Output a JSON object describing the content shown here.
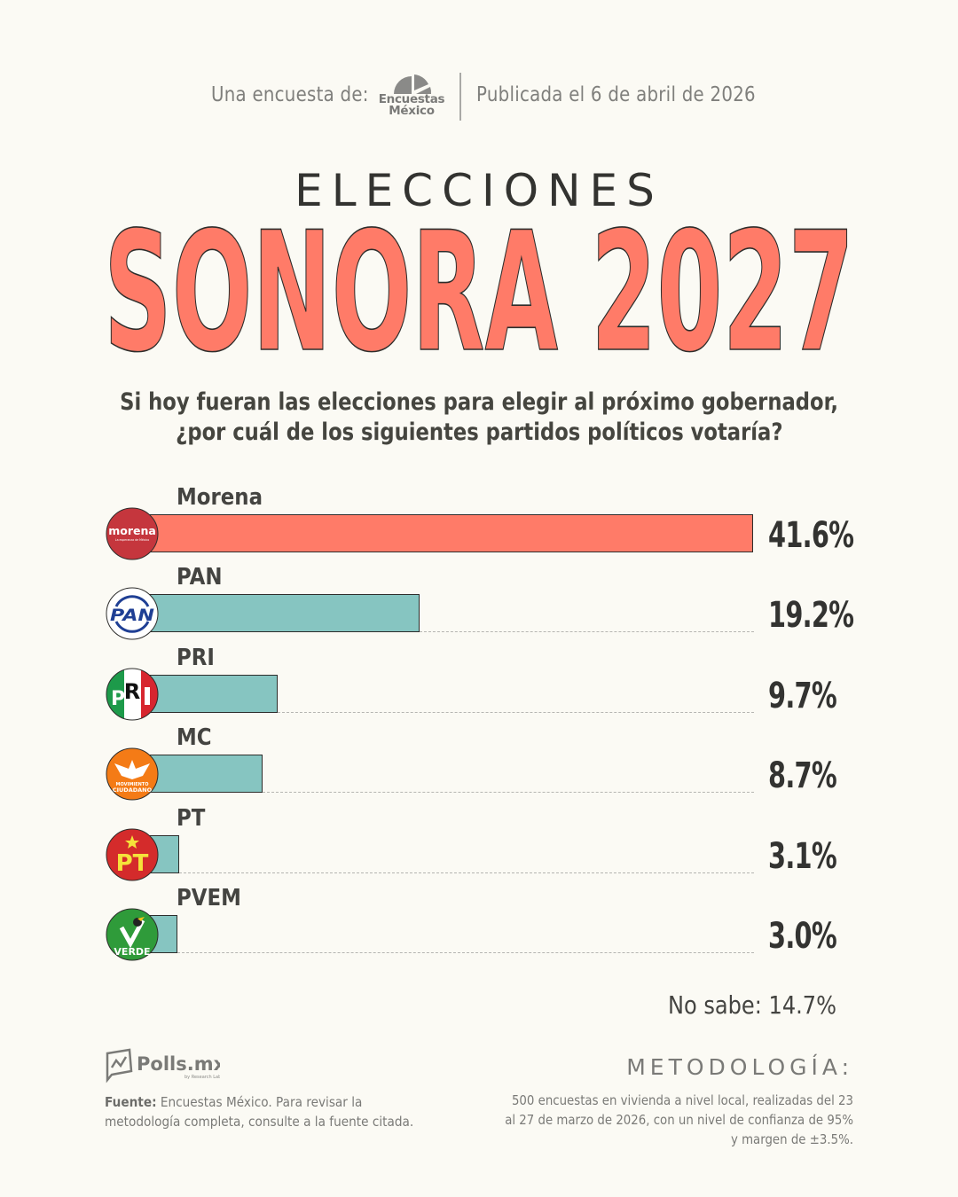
{
  "header": {
    "survey_by_label": "Una encuesta de:",
    "pollster_logo_line1": "Encuestas",
    "pollster_logo_line2": "México",
    "published_label": "Publicada el 6 de abril de 2026"
  },
  "title": {
    "kicker": "ELECCIONES",
    "main": "SONORA 2027",
    "main_color": "#ff7b68"
  },
  "question": {
    "line1": "Si hoy fueran las elecciones para elegir al próximo gobernador,",
    "line2": "¿por cuál de los siguientes partidos políticos votaría?"
  },
  "chart_data": {
    "type": "bar",
    "orientation": "horizontal",
    "title": "Si hoy fueran las elecciones para elegir al próximo gobernador, ¿por cuál de los siguientes partidos políticos votaría?",
    "xlabel": "",
    "ylabel": "",
    "unit": "%",
    "xlim": [
      0,
      41.6
    ],
    "grid": false,
    "categories": [
      "Morena",
      "PAN",
      "PRI",
      "MC",
      "PT",
      "PVEM"
    ],
    "values": [
      41.6,
      19.2,
      9.7,
      8.7,
      3.1,
      3.0
    ],
    "value_labels": [
      "41.6%",
      "19.2%",
      "9.7%",
      "8.7%",
      "3.1%",
      "3.0%"
    ],
    "bar_colors": [
      "#ff7b68",
      "#86c5c1",
      "#86c5c1",
      "#86c5c1",
      "#86c5c1",
      "#86c5c1"
    ],
    "party_logos": [
      "morena-logo",
      "pan-logo",
      "pri-logo",
      "mc-logo",
      "pt-logo",
      "pvem-logo"
    ],
    "annotations": [
      "No sabe: 14.7%"
    ],
    "no_sabe": 14.7
  },
  "logos": {
    "morena_text": "morena",
    "morena_sub": "La esperanza de México",
    "pan_text": "PAN",
    "mc_text1": "MOVIMIENTO",
    "mc_text2": "CIUDADANO",
    "pt_text": "PT",
    "pvem_text": "VERDE"
  },
  "no_sabe_label": "No sabe: 14.7%",
  "footer": {
    "brand": "Polls.mx",
    "brand_sub": "by Research Lab",
    "source_label": "Fuente:",
    "source_text": " Encuestas México. Para revisar la metodología completa, consulte a la fuente citada.",
    "methodology_title": "METODOLOGÍA:",
    "methodology_text": "500 encuestas en vivienda a nivel local, realizadas del 23 al 27 de marzo de 2026, con un nivel de confianza de 95% y margen de ±3.5%."
  }
}
